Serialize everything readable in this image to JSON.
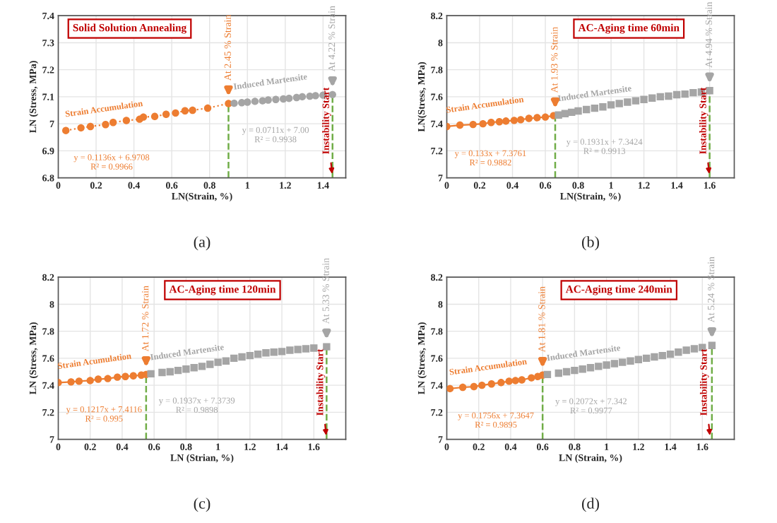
{
  "chart_data": [
    {
      "type": "scatter",
      "title": "Solid Solution Annealing",
      "xlabel": "LN(Strain, %)",
      "ylabel": "LN (Stress, MPa)",
      "xlim": [
        0,
        1.52
      ],
      "ylim": [
        6.8,
        7.4
      ],
      "xticks": [
        0,
        0.2,
        0.4,
        0.6,
        0.8,
        1,
        1.2,
        1.4
      ],
      "yticks": [
        6.8,
        6.9,
        7,
        7.1,
        7.2,
        7.3,
        7.4
      ],
      "grid": true,
      "series": [
        {
          "name": "Strain Accumulation",
          "color": "#ed7d31",
          "marker": "circle",
          "type": "line",
          "line_style": "dotted",
          "x": [
            0.04,
            0.12,
            0.17,
            0.25,
            0.29,
            0.36,
            0.43,
            0.45,
            0.51,
            0.57,
            0.62,
            0.67,
            0.71,
            0.79,
            0.9
          ],
          "values": [
            6.975,
            6.985,
            6.99,
            6.997,
            7.005,
            7.012,
            7.017,
            7.025,
            7.027,
            7.035,
            7.04,
            7.048,
            7.05,
            7.058,
            7.075
          ]
        },
        {
          "name": "Induced Martensite",
          "color": "#a5a5a5",
          "marker": "circle",
          "x": [
            0.93,
            0.97,
            1.0,
            1.04,
            1.08,
            1.11,
            1.15,
            1.19,
            1.22,
            1.26,
            1.29,
            1.33,
            1.36,
            1.4,
            1.45
          ],
          "values": [
            7.076,
            7.078,
            7.08,
            7.083,
            7.085,
            7.088,
            7.09,
            7.092,
            7.094,
            7.097,
            7.1,
            7.102,
            7.104,
            7.106,
            7.108
          ]
        }
      ],
      "ref_lines": [
        {
          "axis": "x",
          "value": 0.9,
          "label": "At 2.45 % Strain",
          "color": "#70ad47",
          "line_style": "dashed"
        },
        {
          "axis": "x",
          "value": 1.45,
          "label": "At 4.22 % Strain",
          "color": "#70ad47",
          "line_style": "dashed"
        }
      ],
      "annotations": [
        "y = 0.1136x + 6.9708\nR² = 0.9966",
        "y = 0.0711x + 7.00\nR² = 0.9938",
        {
          "text": "Instability Start",
          "x": 1.45,
          "y": 6.8
        },
        "(a)"
      ]
    },
    {
      "type": "scatter",
      "title": "AC-Aging time 60min",
      "xlabel": "LN(Strain, %)",
      "ylabel": "LN(Stress, MPa)",
      "xlim": [
        0,
        1.75
      ],
      "ylim": [
        7,
        8.2
      ],
      "xticks": [
        0,
        0.2,
        0.4,
        0.6,
        0.8,
        1,
        1.2,
        1.4,
        1.6
      ],
      "yticks": [
        7,
        7.2,
        7.4,
        7.6,
        7.8,
        8,
        8.2
      ],
      "grid": true,
      "series": [
        {
          "name": "Strain Accumulation",
          "color": "#ed7d31",
          "marker": "circle",
          "type": "line",
          "line_style": "solid",
          "x": [
            0,
            0.08,
            0.16,
            0.22,
            0.27,
            0.32,
            0.36,
            0.41,
            0.45,
            0.5,
            0.55,
            0.6,
            0.65
          ],
          "values": [
            7.38,
            7.39,
            7.395,
            7.4,
            7.41,
            7.415,
            7.42,
            7.425,
            7.43,
            7.44,
            7.445,
            7.45,
            7.46
          ]
        },
        {
          "name": "Induced Martensite",
          "color": "#a5a5a5",
          "marker": "square",
          "x": [
            0.68,
            0.72,
            0.76,
            0.8,
            0.85,
            0.9,
            0.95,
            1.0,
            1.05,
            1.1,
            1.15,
            1.2,
            1.25,
            1.3,
            1.35,
            1.4,
            1.45,
            1.5,
            1.55,
            1.6
          ],
          "values": [
            7.465,
            7.475,
            7.485,
            7.495,
            7.505,
            7.515,
            7.525,
            7.54,
            7.55,
            7.56,
            7.57,
            7.58,
            7.59,
            7.6,
            7.605,
            7.615,
            7.62,
            7.63,
            7.635,
            7.645
          ]
        }
      ],
      "ref_lines": [
        {
          "axis": "x",
          "value": 0.66,
          "label": "At 1.93 % Strain",
          "color": "#70ad47",
          "line_style": "dashed"
        },
        {
          "axis": "x",
          "value": 1.6,
          "label": "At 4.94 % Strain",
          "color": "#70ad47",
          "line_style": "dashed"
        }
      ],
      "annotations": [
        "y = 0.133x + 7.3761\nR² = 0.9882",
        "y = 0.1931x + 7.3424\nR² = 0.9913",
        {
          "text": "Instability Start",
          "x": 1.6,
          "y": 7.0
        },
        "(b)"
      ]
    },
    {
      "type": "scatter",
      "title": "AC-Aging time 120min",
      "xlabel": "LN (Strian, %)",
      "ylabel": "LN (Stress, MPa)",
      "xlim": [
        0,
        1.8
      ],
      "ylim": [
        7,
        8.2
      ],
      "xticks": [
        0,
        0.2,
        0.4,
        0.6,
        0.8,
        1,
        1.2,
        1.4,
        1.6
      ],
      "yticks": [
        7,
        7.2,
        7.4,
        7.6,
        7.8,
        8,
        8.2
      ],
      "grid": true,
      "series": [
        {
          "name": "Strain Acumulation",
          "color": "#ed7d31",
          "marker": "circle",
          "type": "line",
          "line_style": "solid",
          "x": [
            0,
            0.08,
            0.13,
            0.2,
            0.25,
            0.31,
            0.37,
            0.42,
            0.47,
            0.52,
            0.55
          ],
          "values": [
            7.42,
            7.425,
            7.43,
            7.435,
            7.445,
            7.45,
            7.46,
            7.465,
            7.47,
            7.475,
            7.48
          ]
        },
        {
          "name": "Induced Martensite",
          "color": "#a5a5a5",
          "marker": "square",
          "x": [
            0.58,
            0.65,
            0.7,
            0.75,
            0.8,
            0.85,
            0.9,
            0.95,
            1.0,
            1.05,
            1.1,
            1.15,
            1.2,
            1.25,
            1.3,
            1.35,
            1.4,
            1.45,
            1.5,
            1.55,
            1.6,
            1.68
          ],
          "values": [
            7.485,
            7.495,
            7.5,
            7.51,
            7.52,
            7.53,
            7.54,
            7.555,
            7.57,
            7.58,
            7.6,
            7.61,
            7.62,
            7.63,
            7.64,
            7.645,
            7.65,
            7.66,
            7.665,
            7.67,
            7.675,
            7.685
          ]
        }
      ],
      "ref_lines": [
        {
          "axis": "x",
          "value": 0.55,
          "label": "At 1.72 % Strain",
          "color": "#70ad47",
          "line_style": "dashed"
        },
        {
          "axis": "x",
          "value": 1.68,
          "label": "At 5.33 % Strain",
          "color": "#70ad47",
          "line_style": "dashed"
        }
      ],
      "annotations": [
        "y = 0.1217x + 7.4116\nR² = 0.995",
        "y = 0.1937x + 7.3739\nR² = 0.9898",
        {
          "text": "Instability Start",
          "x": 1.68,
          "y": 7.0
        },
        "(c)"
      ]
    },
    {
      "type": "scatter",
      "title": "AC-Aging time 240min",
      "xlabel": "LN (Strain, %)",
      "ylabel": "LN (Stress, MPa)",
      "xlim": [
        0,
        1.8
      ],
      "ylim": [
        7,
        8.2
      ],
      "xticks": [
        0,
        0.2,
        0.4,
        0.6,
        0.8,
        1,
        1.2,
        1.4,
        1.6
      ],
      "yticks": [
        7,
        7.2,
        7.4,
        7.6,
        7.8,
        8,
        8.2
      ],
      "grid": true,
      "series": [
        {
          "name": "Strain Accumulation",
          "color": "#ed7d31",
          "marker": "circle",
          "type": "line",
          "line_style": "solid",
          "x": [
            0.02,
            0.1,
            0.17,
            0.22,
            0.28,
            0.34,
            0.39,
            0.43,
            0.47,
            0.53,
            0.57,
            0.6
          ],
          "values": [
            7.375,
            7.385,
            7.39,
            7.4,
            7.41,
            7.42,
            7.43,
            7.435,
            7.44,
            7.455,
            7.465,
            7.475
          ]
        },
        {
          "name": "Induced Martensite",
          "color": "#a5a5a5",
          "marker": "square",
          "x": [
            0.63,
            0.7,
            0.75,
            0.8,
            0.85,
            0.9,
            0.95,
            1.0,
            1.05,
            1.1,
            1.15,
            1.2,
            1.25,
            1.3,
            1.35,
            1.4,
            1.45,
            1.5,
            1.55,
            1.6,
            1.66
          ],
          "values": [
            7.48,
            7.49,
            7.5,
            7.51,
            7.52,
            7.53,
            7.54,
            7.55,
            7.56,
            7.57,
            7.58,
            7.59,
            7.6,
            7.61,
            7.62,
            7.63,
            7.645,
            7.66,
            7.67,
            7.68,
            7.695
          ]
        }
      ],
      "ref_lines": [
        {
          "axis": "x",
          "value": 0.6,
          "label": "At 1.81 % Strain",
          "color": "#70ad47",
          "line_style": "dashed"
        },
        {
          "axis": "x",
          "value": 1.66,
          "label": "At 5.24 % Strain",
          "color": "#70ad47",
          "line_style": "dashed"
        }
      ],
      "annotations": [
        "y = 0.1756x + 7.3647\nR² = 0.9895",
        "y = 0.2072x + 7.342\nR² = 0.9977",
        {
          "text": "Instability Start",
          "x": 1.65,
          "y": 7.0
        },
        "(d)"
      ]
    }
  ]
}
